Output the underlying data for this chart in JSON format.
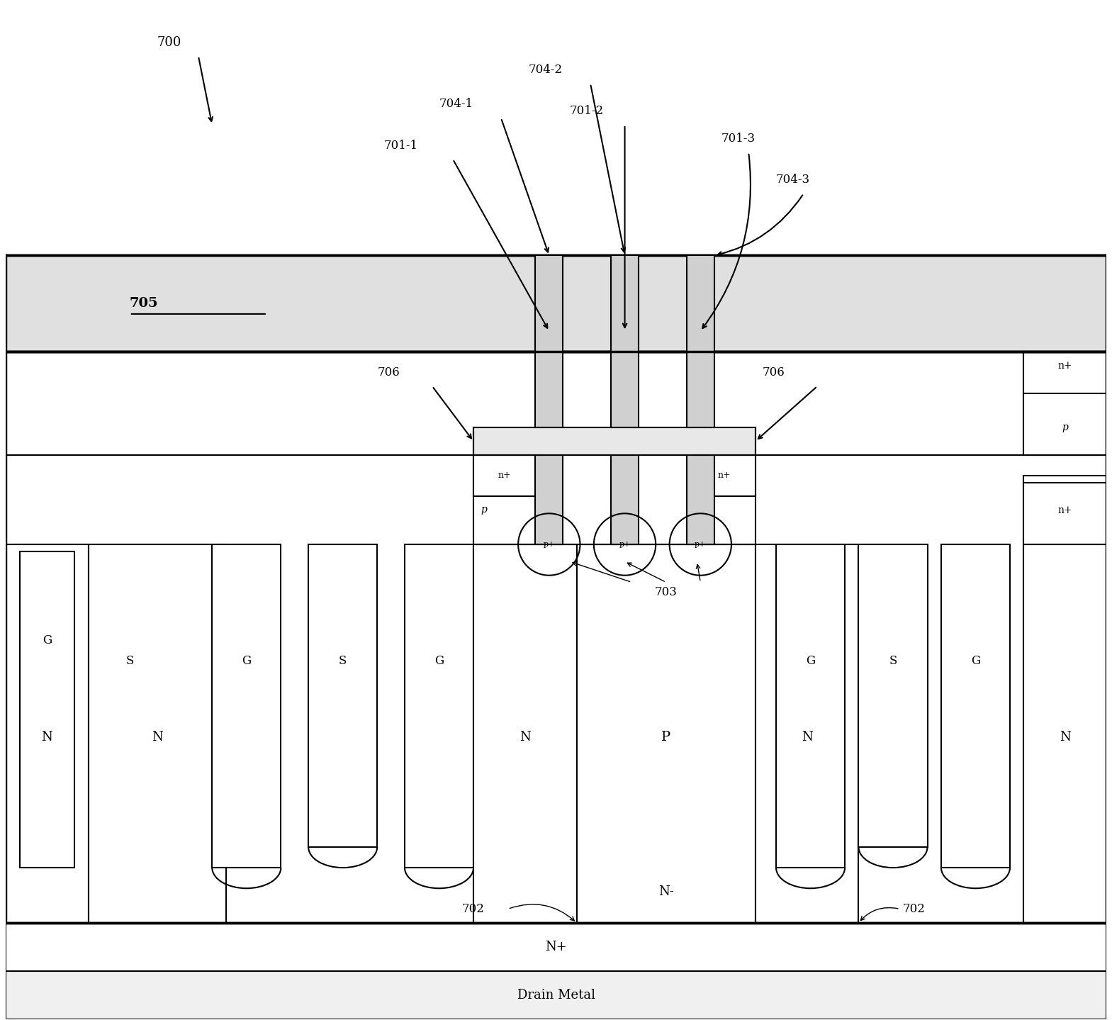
{
  "fig_width": 15.69,
  "fig_height": 14.39,
  "bg_color": "#ffffff",
  "line_color": "#000000",
  "line_width": 1.5,
  "thick_line": 2.5,
  "title_ref": "700",
  "source_metal_label": "705",
  "labels": {
    "701_1": "701-1",
    "701_2": "701-2",
    "701_3": "701-3",
    "704_1": "704-1",
    "704_2": "704-2",
    "704_3": "704-3",
    "706a": "706",
    "706b": "706",
    "703": "703",
    "702a": "702",
    "702b": "702",
    "N_minus": "N-",
    "N_plus": "N+",
    "Drain": "Drain Metal"
  }
}
